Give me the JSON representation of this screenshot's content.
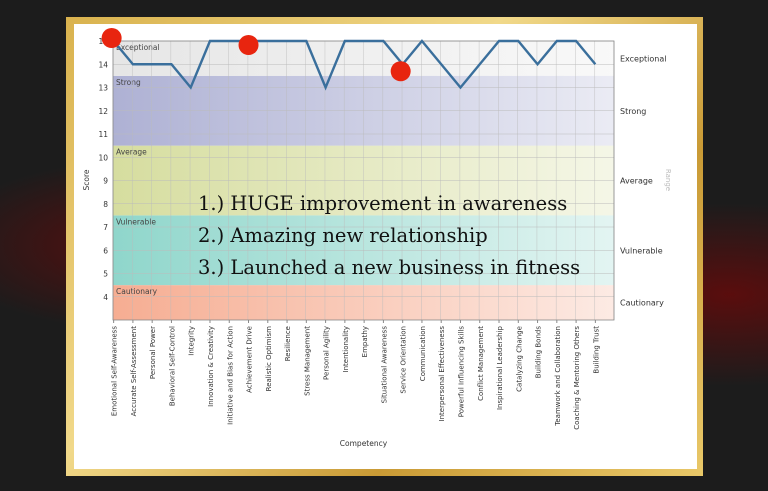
{
  "chart_data": {
    "type": "line",
    "xlabel": "Competency",
    "ylabel": "Score",
    "right_axis_label": "Range",
    "ylim": [
      3,
      15
    ],
    "yticks": [
      4,
      5,
      6,
      7,
      8,
      9,
      10,
      11,
      12,
      13,
      14,
      15
    ],
    "grid": true,
    "categories": [
      "Emotional Self-Awareness",
      "Accurate Self-Assessment",
      "Personal Power",
      "Behavioral Self-Control",
      "Integrity",
      "Innovation & Creativity",
      "Initiative and Bias for Action",
      "Achievement Drive",
      "Realistic Optimism",
      "Resilience",
      "Stress Management",
      "Personal Agility",
      "Intentionality",
      "Empathy",
      "Situational Awareness",
      "Service Orientation",
      "Communication",
      "Interpersonal Effectiveness",
      "Powerful Influencing Skills",
      "Conflict Management",
      "Inspirational Leadership",
      "Catalyzing Change",
      "Building Bonds",
      "Teamwork and Collaboration",
      "Coaching & Mentoring Others",
      "Building Trust"
    ],
    "values": [
      15,
      14,
      14,
      14,
      13,
      15,
      15,
      15,
      15,
      15,
      15,
      13,
      15,
      15,
      15,
      14,
      15,
      14,
      13,
      14,
      15,
      15,
      14,
      15,
      15,
      14
    ],
    "line_color": "#3a6f9c",
    "bands": [
      {
        "name": "Cautionary",
        "from": 3,
        "to": 4.5,
        "color": "#f6ad92"
      },
      {
        "name": "Vulnerable",
        "from": 4.5,
        "to": 7.5,
        "color": "#8fd6cb"
      },
      {
        "name": "Average",
        "from": 7.5,
        "to": 10.5,
        "color": "#d6dd9f"
      },
      {
        "name": "Strong",
        "from": 10.5,
        "to": 13.5,
        "color": "#aeb1d4"
      },
      {
        "name": "Exceptional",
        "from": 13.5,
        "to": 15,
        "color": "#e6e6e6"
      }
    ],
    "highlight_markers": {
      "categories": [
        "Emotional Self-Awareness",
        "Achievement Drive",
        "Service Orientation"
      ],
      "color": "#e8250f"
    }
  },
  "annotations": [
    "1.) HUGE improvement in awareness",
    "2.) Amazing new relationship",
    "3.) Launched a new business in fitness"
  ]
}
